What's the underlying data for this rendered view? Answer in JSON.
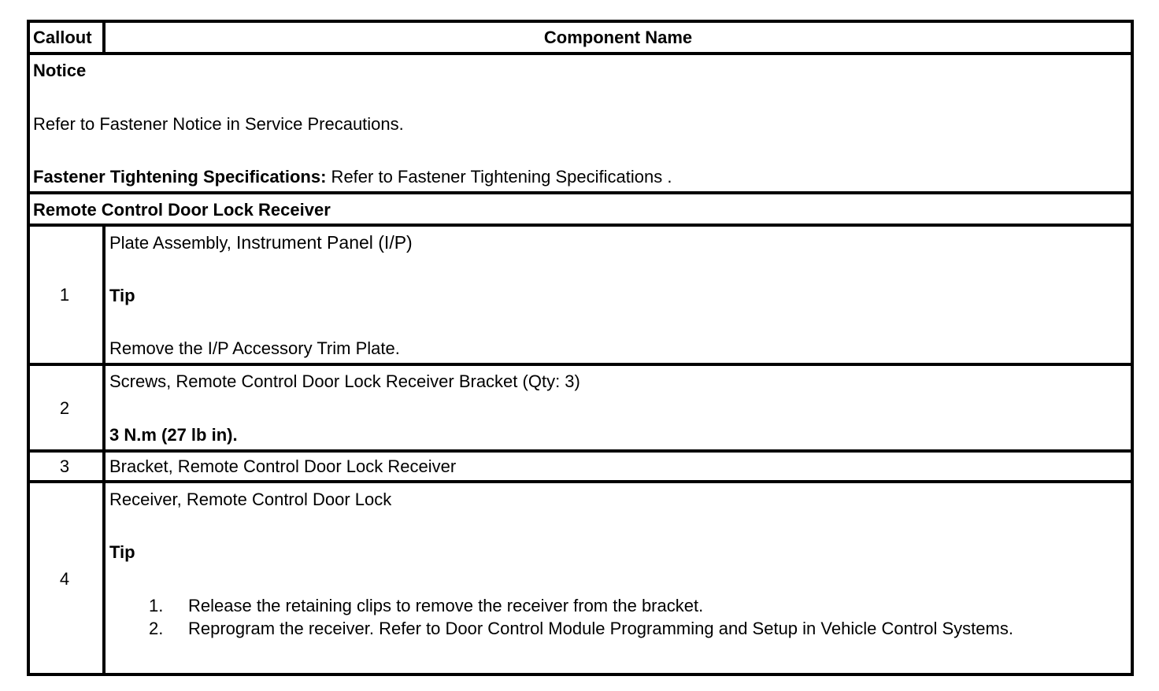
{
  "header": {
    "callout": "Callout",
    "component_name": "Component Name"
  },
  "notice": {
    "title": "Notice",
    "text": "Refer to Fastener Notice in Service Precautions.",
    "spec_label": "Fastener Tightening Specifications:",
    "spec_text": " Refer to Fastener Tightening Specifications ."
  },
  "section": {
    "title": "Remote Control Door Lock Receiver"
  },
  "rows": [
    {
      "callout": "1",
      "name": "Plate Assembly,",
      "name_b": "Instrument Panel (I/P)",
      "tip": "Tip",
      "detail": "Remove the I/P Accessory Trim Plate."
    },
    {
      "callout": "2",
      "name": "Screws, Remote Control Door Lock Receiver Bracket (Qty: 3)",
      "torque": "3 N.m (27 lb in)."
    },
    {
      "callout": "3",
      "name": "Bracket, Remote Control Door Lock Receiver"
    },
    {
      "callout": "4",
      "name": "Receiver, Remote Control Door Lock",
      "tip": "Tip",
      "steps": [
        {
          "num": "1.",
          "text": "Release the retaining clips to remove the receiver from the bracket."
        },
        {
          "num": "2.",
          "text": "Reprogram the receiver. Refer to Door Control Module Programming and Setup in Vehicle Control Systems."
        }
      ]
    }
  ]
}
